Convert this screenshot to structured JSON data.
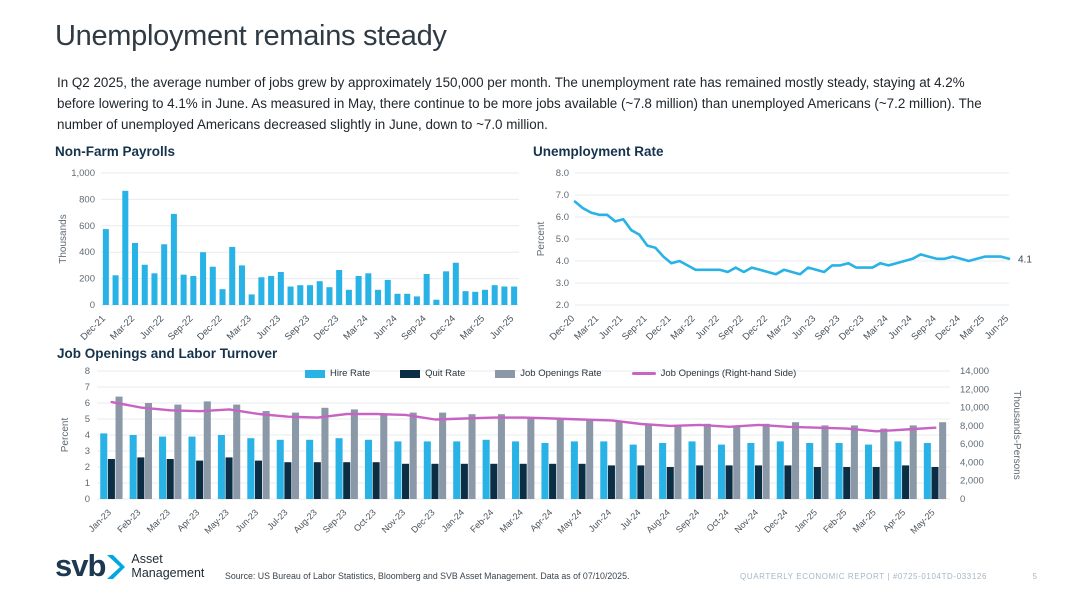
{
  "header": {
    "title": "Unemployment remains steady",
    "paragraph": "In Q2 2025, the average number of jobs grew by approximately 150,000 per month. The unemployment rate has remained mostly steady, staying at 4.2% before lowering to 4.1% in June. As measured in May, there continue to be more jobs available (~7.8 million) than unemployed Americans (~7.2 million). The number of unemployed Americans decreased slightly in June, down to ~7.0 million."
  },
  "colors": {
    "accent_blue": "#29b2e6",
    "dark_navy": "#0c2e45",
    "slate_gray": "#8b98a7",
    "magenta": "#c963c3",
    "grid": "#e8ebee",
    "tick_text": "#5f6b76",
    "title_navy": "#16334d"
  },
  "chart_data": [
    {
      "type": "bar",
      "title": "Non-Farm Payrolls",
      "ylabel": "Thousands",
      "ylim": [
        0,
        1000
      ],
      "y_tick_values": [
        0,
        200,
        400,
        600,
        800,
        1000
      ],
      "y_tick_labels": [
        "0",
        "200",
        "400",
        "600",
        "800",
        "1,000"
      ],
      "x_tick_step": 3,
      "bar_color": "#29b2e6",
      "categories": [
        "Dec-21",
        "Jan-22",
        "Feb-22",
        "Mar-22",
        "Apr-22",
        "May-22",
        "Jun-22",
        "Jul-22",
        "Aug-22",
        "Sep-22",
        "Oct-22",
        "Nov-22",
        "Dec-22",
        "Jan-23",
        "Feb-23",
        "Mar-23",
        "Apr-23",
        "May-23",
        "Jun-23",
        "Jul-23",
        "Aug-23",
        "Sep-23",
        "Oct-23",
        "Nov-23",
        "Dec-23",
        "Jan-24",
        "Feb-24",
        "Mar-24",
        "Apr-24",
        "May-24",
        "Jun-24",
        "Jul-24",
        "Aug-24",
        "Sep-24",
        "Oct-24",
        "Nov-24",
        "Dec-24",
        "Jan-25",
        "Feb-25",
        "Mar-25",
        "Apr-25",
        "May-25",
        "Jun-25"
      ],
      "values": [
        575,
        225,
        865,
        470,
        305,
        240,
        460,
        690,
        230,
        220,
        400,
        290,
        120,
        440,
        300,
        80,
        210,
        220,
        250,
        140,
        150,
        150,
        180,
        135,
        265,
        115,
        220,
        240,
        115,
        190,
        85,
        85,
        65,
        235,
        40,
        255,
        320,
        105,
        100,
        115,
        150,
        140,
        140
      ]
    },
    {
      "type": "line",
      "title": "Unemployment Rate",
      "ylabel": "Percent",
      "ylim": [
        2,
        8
      ],
      "y_tick_values": [
        2,
        3,
        4,
        5,
        6,
        7,
        8
      ],
      "y_tick_labels": [
        "2.0",
        "3.0",
        "4.0",
        "5.0",
        "6.0",
        "7.0",
        "8.0"
      ],
      "x_tick_step": 3,
      "line_color": "#29b2e6",
      "end_label": "4.1",
      "categories": [
        "Dec-20",
        "Jan-21",
        "Feb-21",
        "Mar-21",
        "Apr-21",
        "May-21",
        "Jun-21",
        "Jul-21",
        "Aug-21",
        "Sep-21",
        "Oct-21",
        "Nov-21",
        "Dec-21",
        "Jan-22",
        "Feb-22",
        "Mar-22",
        "Apr-22",
        "May-22",
        "Jun-22",
        "Jul-22",
        "Aug-22",
        "Sep-22",
        "Oct-22",
        "Nov-22",
        "Dec-22",
        "Jan-23",
        "Feb-23",
        "Mar-23",
        "Apr-23",
        "May-23",
        "Jun-23",
        "Jul-23",
        "Aug-23",
        "Sep-23",
        "Oct-23",
        "Nov-23",
        "Dec-23",
        "Jan-24",
        "Feb-24",
        "Mar-24",
        "Apr-24",
        "May-24",
        "Jun-24",
        "Jul-24",
        "Aug-24",
        "Sep-24",
        "Oct-24",
        "Nov-24",
        "Dec-24",
        "Jan-25",
        "Feb-25",
        "Mar-25",
        "Apr-25",
        "May-25",
        "Jun-25"
      ],
      "values": [
        6.7,
        6.4,
        6.2,
        6.1,
        6.1,
        5.8,
        5.9,
        5.4,
        5.2,
        4.7,
        4.6,
        4.2,
        3.9,
        4.0,
        3.8,
        3.6,
        3.6,
        3.6,
        3.6,
        3.5,
        3.7,
        3.5,
        3.7,
        3.6,
        3.5,
        3.4,
        3.6,
        3.5,
        3.4,
        3.7,
        3.6,
        3.5,
        3.8,
        3.8,
        3.9,
        3.7,
        3.7,
        3.7,
        3.9,
        3.8,
        3.9,
        4.0,
        4.1,
        4.3,
        4.2,
        4.1,
        4.1,
        4.2,
        4.1,
        4.0,
        4.1,
        4.2,
        4.2,
        4.2,
        4.1
      ]
    },
    {
      "type": "combo-bar-line",
      "title": "Job Openings and Labor Turnover",
      "ylabel_left": "Percent",
      "ylabel_right": "Thousands-Persons",
      "ylim_left": [
        0,
        8
      ],
      "ylim_right": [
        0,
        14000
      ],
      "y_tick_labels_left": [
        "0",
        "1",
        "2",
        "3",
        "4",
        "5",
        "6",
        "7",
        "8"
      ],
      "y_tick_labels_right": [
        "0",
        "2,000",
        "4,000",
        "6,000",
        "8,000",
        "10,000",
        "12,000",
        "14,000"
      ],
      "x_tick_step": 1,
      "categories": [
        "Jan-23",
        "Feb-23",
        "Mar-23",
        "Apr-23",
        "May-23",
        "Jun-23",
        "Jul-23",
        "Aug-23",
        "Sep-23",
        "Oct-23",
        "Nov-23",
        "Dec-23",
        "Jan-24",
        "Feb-24",
        "Mar-24",
        "Apr-24",
        "May-24",
        "Jun-24",
        "Jul-24",
        "Aug-24",
        "Sep-24",
        "Oct-24",
        "Nov-24",
        "Dec-24",
        "Jan-25",
        "Feb-25",
        "Mar-25",
        "Apr-25",
        "May-25"
      ],
      "legend": [
        {
          "label": "Hire Rate",
          "color": "#29b2e6",
          "type": "bar"
        },
        {
          "label": "Quit Rate",
          "color": "#0c2e45",
          "type": "bar"
        },
        {
          "label": "Job Openings Rate",
          "color": "#8b98a7",
          "type": "bar"
        },
        {
          "label": "Job Openings (Right-hand Side)",
          "color": "#c963c3",
          "type": "line"
        }
      ],
      "series": [
        {
          "name": "Hire Rate",
          "axis": "left",
          "kind": "bar",
          "color": "#29b2e6",
          "values": [
            4.1,
            4.0,
            3.9,
            3.9,
            4.0,
            3.8,
            3.7,
            3.7,
            3.8,
            3.7,
            3.6,
            3.6,
            3.6,
            3.7,
            3.6,
            3.5,
            3.6,
            3.6,
            3.4,
            3.5,
            3.6,
            3.4,
            3.5,
            3.6,
            3.5,
            3.5,
            3.4,
            3.6,
            3.5
          ]
        },
        {
          "name": "Quit Rate",
          "axis": "left",
          "kind": "bar",
          "color": "#0c2e45",
          "values": [
            2.5,
            2.6,
            2.5,
            2.4,
            2.6,
            2.4,
            2.3,
            2.3,
            2.3,
            2.3,
            2.2,
            2.2,
            2.2,
            2.2,
            2.2,
            2.2,
            2.2,
            2.1,
            2.1,
            2.0,
            2.1,
            2.1,
            2.1,
            2.1,
            2.0,
            2.0,
            2.0,
            2.1,
            2.0
          ]
        },
        {
          "name": "Job Openings Rate",
          "axis": "left",
          "kind": "bar",
          "color": "#8b98a7",
          "values": [
            6.4,
            6.0,
            5.9,
            6.1,
            5.9,
            5.5,
            5.4,
            5.7,
            5.6,
            5.3,
            5.4,
            5.4,
            5.3,
            5.3,
            5.1,
            5.0,
            4.9,
            4.9,
            4.7,
            4.6,
            4.7,
            4.5,
            4.7,
            4.8,
            4.6,
            4.6,
            4.4,
            4.6,
            4.8
          ]
        },
        {
          "name": "Job Openings (Right-hand Side)",
          "axis": "right",
          "kind": "line",
          "color": "#c963c3",
          "values": [
            10600,
            10000,
            9700,
            9600,
            9800,
            9300,
            9000,
            8900,
            9300,
            9300,
            9200,
            8700,
            8800,
            8900,
            8900,
            8800,
            8700,
            8600,
            8200,
            8000,
            8100,
            7900,
            8100,
            7900,
            7800,
            7700,
            7400,
            7600,
            7800
          ]
        }
      ]
    }
  ],
  "footer": {
    "logo": {
      "mark": "svb",
      "line1": "Asset",
      "line2": "Management"
    },
    "source": "Source: US Bureau of Labor Statistics, Bloomberg and SVB Asset Management. Data as of 07/10/2025.",
    "report_label": "QUARTERLY ECONOMIC REPORT | #0725-0104TD-033126",
    "page_number": "5"
  }
}
